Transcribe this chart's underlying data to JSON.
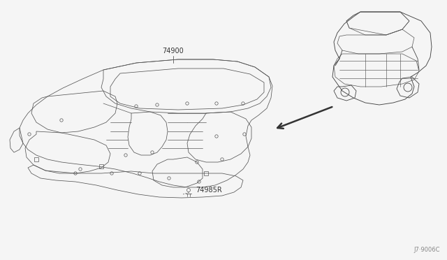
{
  "background_color": "#f5f5f5",
  "line_color": "#555555",
  "dark_color": "#333333",
  "label_74900": "74900",
  "label_74985R": "74985R",
  "diagram_code": "J7·9006C",
  "arrow_color": "#333333"
}
